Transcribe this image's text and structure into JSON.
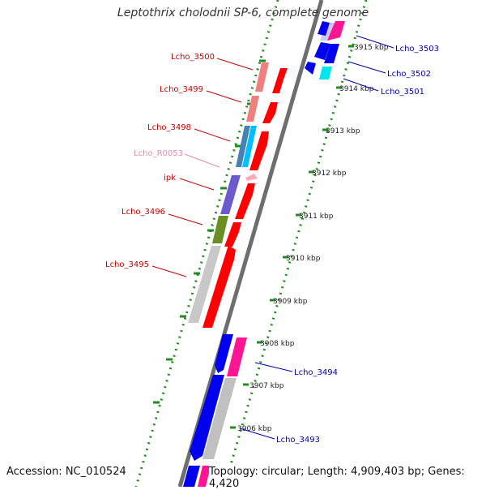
{
  "title": "Leptothrix cholodnii SP-6, complete genome",
  "accession": "Accession: NC_010524",
  "topology": "Topology: circular; Length: 4,909,403 bp; Genes: 4,420",
  "colors": {
    "backbone": "#6e6e6e",
    "tick_green": "#228b22",
    "forward_label": "#cc0000",
    "reverse_label": "#0000aa",
    "rna_label": "#e88aa8"
  },
  "ruler_ticks": [
    "3915 kbp",
    "3914 kbp",
    "3913 kbp",
    "3912 kbp",
    "3911 kbp",
    "3910 kbp",
    "3909 kbp",
    "3908 kbp",
    "3907 kbp",
    "3906 kbp"
  ],
  "forward_labels": [
    "Lcho_3500",
    "Lcho_3499",
    "Lcho_3498",
    "Lcho_R0053",
    "ipk",
    "Lcho_3496",
    "Lcho_3495"
  ],
  "reverse_labels": [
    "Lcho_3503",
    "Lcho_3502",
    "Lcho_3501",
    "Lcho_3494",
    "Lcho_3493"
  ]
}
